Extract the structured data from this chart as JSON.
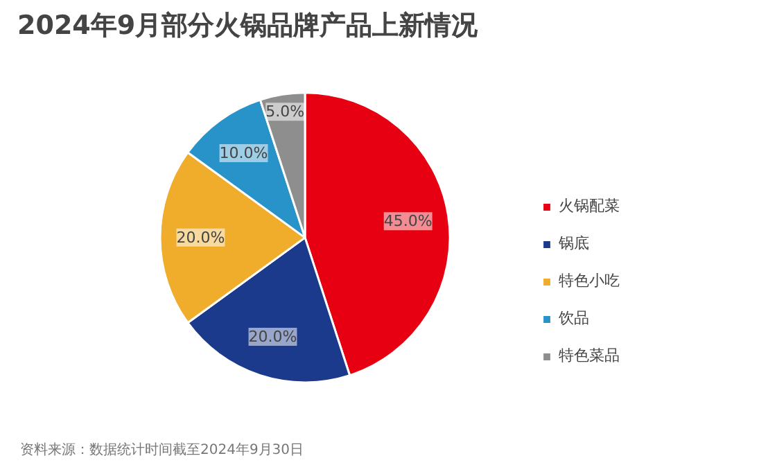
{
  "chart_data": {
    "type": "pie",
    "title": "2024年9月部分火锅品牌产品上新情况",
    "categories": [
      "火锅配菜",
      "锅底",
      "特色小吃",
      "饮品",
      "特色菜品"
    ],
    "values": [
      45,
      20,
      20,
      10,
      5
    ],
    "value_labels": [
      "45.0%",
      "20.0%",
      "20.0%",
      "10.0%",
      "5.0%"
    ],
    "colors": [
      "#e60012",
      "#1b3a8c",
      "#f0ad2b",
      "#2893c8",
      "#8e8e8e"
    ],
    "legend": "right",
    "annotations": [
      "资料来源：数据统计时间截至2024年9月30日"
    ]
  }
}
